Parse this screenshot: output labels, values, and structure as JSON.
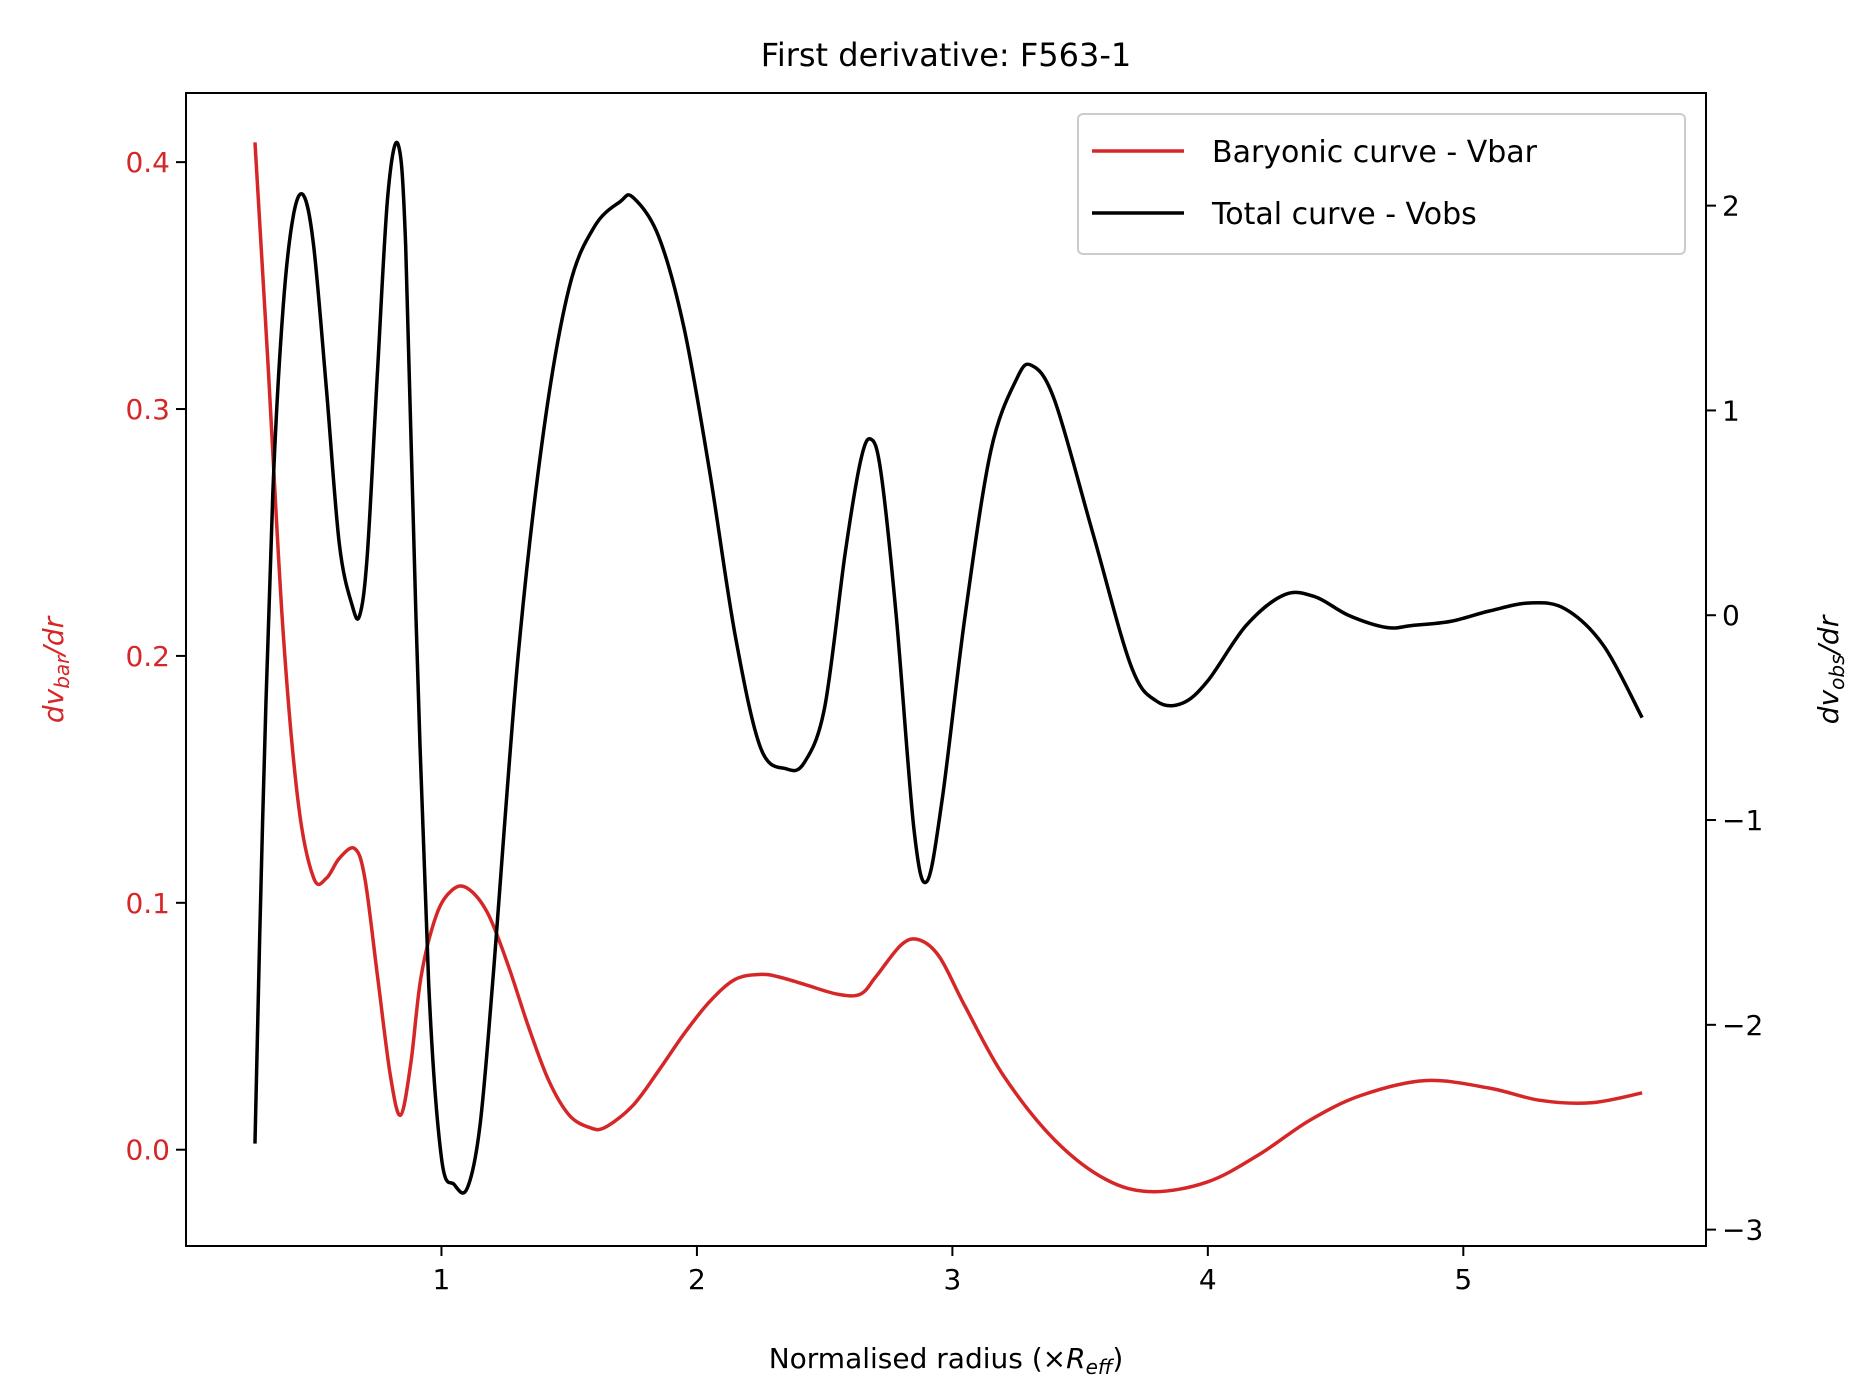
{
  "chart_data": {
    "type": "line",
    "title": "First derivative: F563-1",
    "xlabel": {
      "main": "Normalised radius (×",
      "sym": "R",
      "sub": "eff",
      "close": ")"
    },
    "ylabel_left": {
      "pre": "dv",
      "sub": "bar",
      "post": "/dr"
    },
    "ylabel_right": {
      "pre": "dv",
      "sub": "obs",
      "post": "/dr"
    },
    "xlim": [
      0.0,
      5.95
    ],
    "ylim_left": [
      -0.039,
      0.428
    ],
    "ylim_right": [
      -3.08,
      2.55
    ],
    "xticks": [
      1,
      2,
      3,
      4,
      5
    ],
    "xtick_labels": [
      "1",
      "2",
      "3",
      "4",
      "5"
    ],
    "yticks_left": [
      0.0,
      0.1,
      0.2,
      0.3,
      0.4
    ],
    "ytick_labels_left": [
      "0.0",
      "0.1",
      "0.2",
      "0.3",
      "0.4"
    ],
    "yticks_right": [
      -3,
      -2,
      -1,
      0,
      1,
      2
    ],
    "ytick_labels_right": [
      "−3",
      "−2",
      "−1",
      "0",
      "1",
      "2"
    ],
    "grid": false,
    "legend": {
      "position": "top-right",
      "entries": [
        "Baryonic curve - Vbar",
        "Total curve - Vobs"
      ]
    },
    "colors": {
      "vbar": "#d62728",
      "vobs": "#000000",
      "left_axis": "#d62728",
      "text": "#000000"
    },
    "series": [
      {
        "name": "Baryonic curve - Vbar",
        "axis": "left",
        "x": [
          0.27,
          0.32,
          0.38,
          0.44,
          0.5,
          0.55,
          0.6,
          0.66,
          0.7,
          0.75,
          0.8,
          0.84,
          0.88,
          0.92,
          0.98,
          1.04,
          1.1,
          1.18,
          1.26,
          1.34,
          1.42,
          1.5,
          1.58,
          1.64,
          1.75,
          1.85,
          1.95,
          2.05,
          2.15,
          2.25,
          2.32,
          2.42,
          2.55,
          2.64,
          2.7,
          2.8,
          2.87,
          2.95,
          3.05,
          3.2,
          3.4,
          3.6,
          3.78,
          4.0,
          4.2,
          4.4,
          4.6,
          4.85,
          5.1,
          5.3,
          5.5,
          5.7
        ],
        "y": [
          0.408,
          0.32,
          0.21,
          0.14,
          0.11,
          0.11,
          0.118,
          0.122,
          0.11,
          0.07,
          0.03,
          0.014,
          0.035,
          0.07,
          0.095,
          0.105,
          0.106,
          0.096,
          0.075,
          0.05,
          0.028,
          0.014,
          0.009,
          0.009,
          0.018,
          0.032,
          0.047,
          0.06,
          0.069,
          0.071,
          0.07,
          0.067,
          0.063,
          0.063,
          0.07,
          0.083,
          0.085,
          0.078,
          0.058,
          0.03,
          0.004,
          -0.012,
          -0.017,
          -0.013,
          -0.002,
          0.012,
          0.022,
          0.028,
          0.025,
          0.02,
          0.019,
          0.023
        ]
      },
      {
        "name": "Total curve - Vobs",
        "axis": "right",
        "x": [
          0.27,
          0.3,
          0.34,
          0.38,
          0.42,
          0.46,
          0.5,
          0.55,
          0.6,
          0.65,
          0.68,
          0.71,
          0.75,
          0.79,
          0.83,
          0.86,
          0.9,
          0.95,
          1.0,
          1.05,
          1.1,
          1.15,
          1.2,
          1.3,
          1.4,
          1.5,
          1.6,
          1.7,
          1.75,
          1.85,
          1.95,
          2.05,
          2.15,
          2.25,
          2.35,
          2.42,
          2.5,
          2.58,
          2.64,
          2.68,
          2.72,
          2.78,
          2.85,
          2.9,
          2.96,
          3.05,
          3.15,
          3.25,
          3.31,
          3.4,
          3.55,
          3.7,
          3.8,
          3.9,
          4.0,
          4.15,
          4.3,
          4.42,
          4.55,
          4.7,
          4.8,
          4.95,
          5.1,
          5.26,
          5.4,
          5.55,
          5.7
        ],
        "y": [
          -2.58,
          -1.0,
          0.6,
          1.5,
          1.95,
          2.05,
          1.8,
          1.1,
          0.35,
          0.05,
          0.0,
          0.3,
          1.2,
          2.05,
          2.3,
          1.8,
          0.0,
          -1.8,
          -2.65,
          -2.78,
          -2.8,
          -2.5,
          -1.8,
          -0.2,
          0.9,
          1.6,
          1.9,
          2.02,
          2.04,
          1.85,
          1.4,
          0.7,
          -0.1,
          -0.65,
          -0.75,
          -0.72,
          -0.45,
          0.3,
          0.75,
          0.86,
          0.7,
          0.0,
          -1.05,
          -1.3,
          -0.9,
          0.0,
          0.8,
          1.15,
          1.22,
          1.05,
          0.4,
          -0.25,
          -0.42,
          -0.43,
          -0.32,
          -0.05,
          0.1,
          0.09,
          0.0,
          -0.06,
          -0.05,
          -0.03,
          0.02,
          0.06,
          0.03,
          -0.15,
          -0.5
        ]
      }
    ]
  }
}
